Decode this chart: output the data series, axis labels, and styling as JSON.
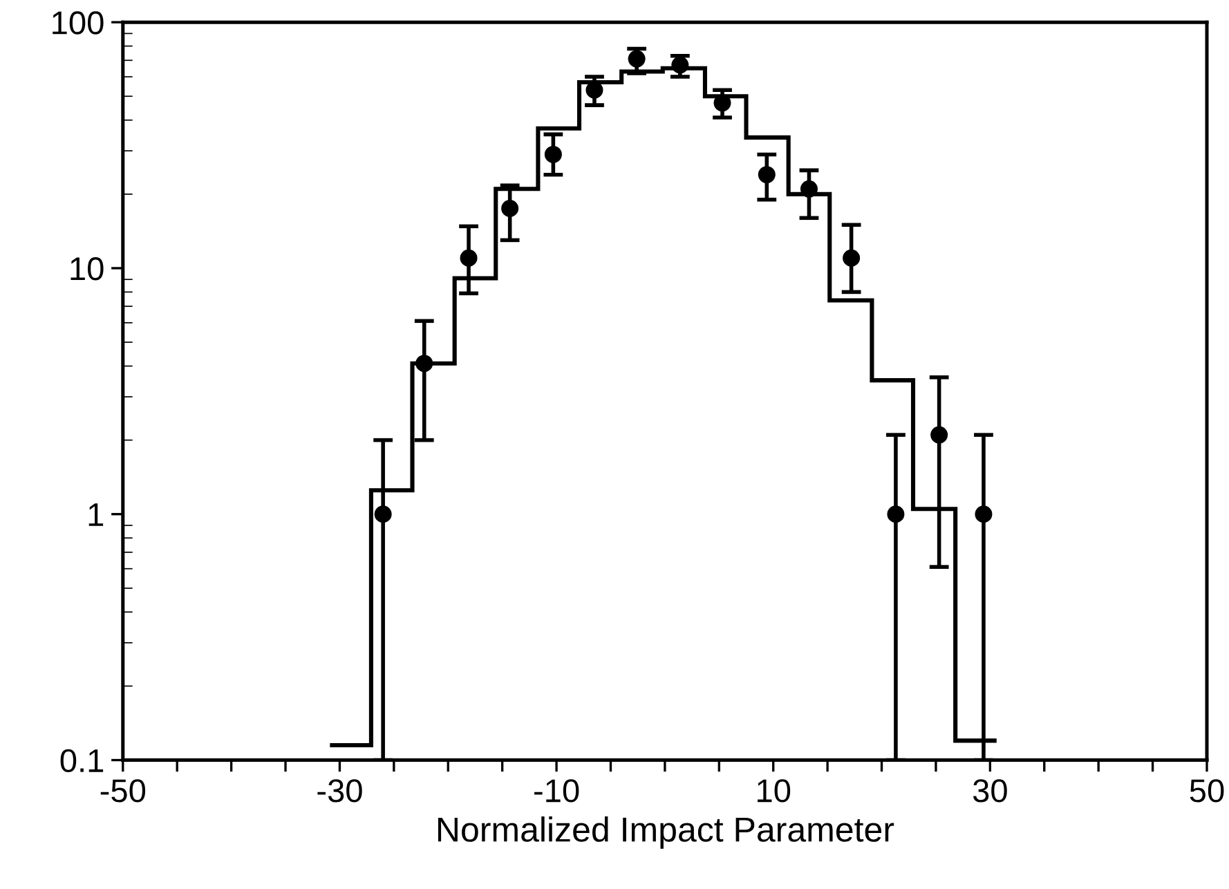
{
  "chart_data": {
    "type": "histogram",
    "xlabel": "Normalized Impact Parameter",
    "log": "y",
    "grid": false,
    "xlim": [
      -50,
      50
    ],
    "ylim": [
      0.1,
      100
    ],
    "xticks": [
      -50,
      {
        "value": -45,
        "label": null
      },
      {
        "value": -40,
        "label": null
      },
      {
        "value": -35,
        "label": null
      },
      -30,
      {
        "value": -25,
        "label": null
      },
      {
        "value": -20,
        "label": null
      },
      {
        "value": -15,
        "label": null
      },
      -10,
      {
        "value": -5,
        "label": null
      },
      {
        "value": 0,
        "label": null
      },
      {
        "value": 5,
        "label": null
      },
      10,
      {
        "value": 15,
        "label": null
      },
      {
        "value": 20,
        "label": null
      },
      {
        "value": 25,
        "label": null
      },
      30,
      {
        "value": 35,
        "label": null
      },
      {
        "value": 40,
        "label": null
      },
      {
        "value": 45,
        "label": null
      },
      50
    ],
    "yticks": [
      0.1,
      1,
      10,
      100
    ],
    "series": [
      {
        "color": "#000000",
        "bins": [
          -30.9,
          -27.1,
          -23.3,
          -19.4,
          -15.6,
          -11.7,
          -7.9,
          -4.0,
          -0.2,
          3.7,
          7.5,
          11.4,
          15.2,
          19.1,
          22.9,
          26.8,
          30.6
        ],
        "values": [
          0.115,
          1.25,
          4.1,
          9.1,
          21,
          37,
          57,
          63,
          65,
          50,
          34,
          20,
          7.4,
          3.5,
          1.05,
          0.12
        ]
      },
      {
        "type": "scatter",
        "color": "#000000",
        "marker": "circle",
        "x": [
          -26.0,
          -22.2,
          -18.1,
          -14.3,
          -10.3,
          -6.5,
          -2.6,
          1.4,
          5.3,
          9.4,
          13.3,
          17.2,
          21.3,
          25.3,
          29.4
        ],
        "values": [
          1.0,
          4.1,
          11,
          17.5,
          29,
          53,
          71,
          67,
          47,
          24,
          21,
          11,
          1.0,
          2.1,
          1.0
        ],
        "errors": [
          [
            0.1,
            2.0
          ],
          [
            2.0,
            6.1
          ],
          [
            7.9,
            14.8
          ],
          [
            13,
            21.7
          ],
          [
            24,
            35
          ],
          [
            46,
            60
          ],
          [
            62,
            78
          ],
          [
            60,
            73
          ],
          [
            41,
            53
          ],
          [
            19,
            29
          ],
          [
            16,
            25
          ],
          [
            8,
            15
          ],
          [
            0.1,
            2.1
          ],
          [
            0.61,
            3.6
          ],
          [
            0.1,
            2.1
          ]
        ]
      }
    ]
  }
}
